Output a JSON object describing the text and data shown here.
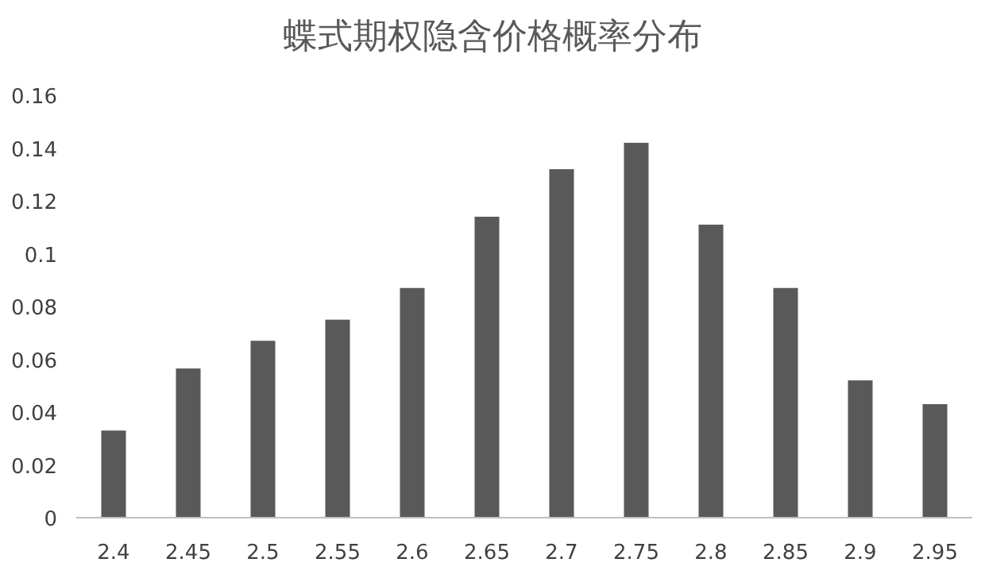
{
  "chart_data": {
    "type": "bar",
    "title": "蝶式期权隐含价格概率分布",
    "categories": [
      "2.4",
      "2.45",
      "2.5",
      "2.55",
      "2.6",
      "2.65",
      "2.7",
      "2.75",
      "2.8",
      "2.85",
      "2.9",
      "2.95"
    ],
    "values": [
      0.033,
      0.0565,
      0.067,
      0.075,
      0.087,
      0.114,
      0.132,
      0.142,
      0.111,
      0.087,
      0.052,
      0.043
    ],
    "color": "#595959",
    "ylim": [
      0,
      0.16
    ],
    "yticks": [
      0,
      0.02,
      0.04,
      0.06,
      0.08,
      0.1,
      0.12,
      0.14,
      0.16
    ],
    "grid": false
  }
}
